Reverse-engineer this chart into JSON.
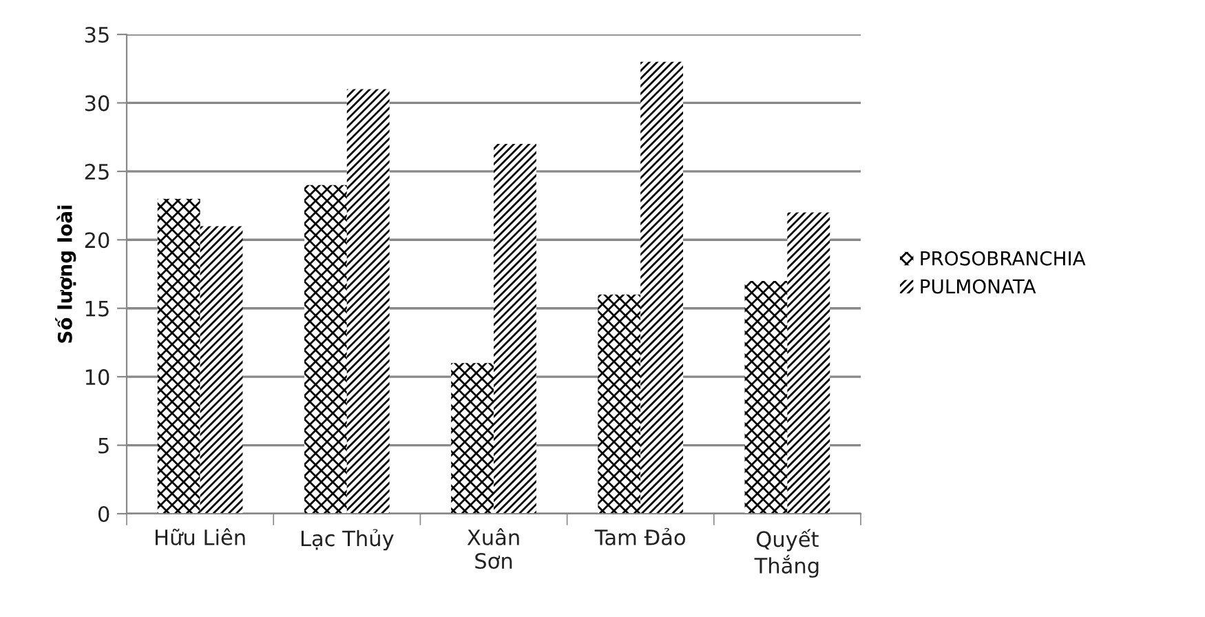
{
  "chart_data": {
    "type": "bar",
    "ylabel": "Số lượng loài",
    "categories": [
      "Hữu Liên",
      "Lạc Thủy",
      "Xuân\nSơn",
      "Tam Đảo",
      "Quyết\nThắng"
    ],
    "series": [
      {
        "name": "PROSOBRANCHIA",
        "color": "#000000",
        "values": [
          23,
          24,
          11,
          16,
          17
        ]
      },
      {
        "name": "PULMONATA",
        "color": "#000000",
        "values": [
          21,
          31,
          27,
          33,
          22
        ]
      }
    ],
    "ylim": [
      0,
      35
    ],
    "yticks": [
      0,
      5,
      10,
      15,
      20,
      25,
      30,
      35
    ],
    "grid": "y",
    "legend": "right"
  }
}
